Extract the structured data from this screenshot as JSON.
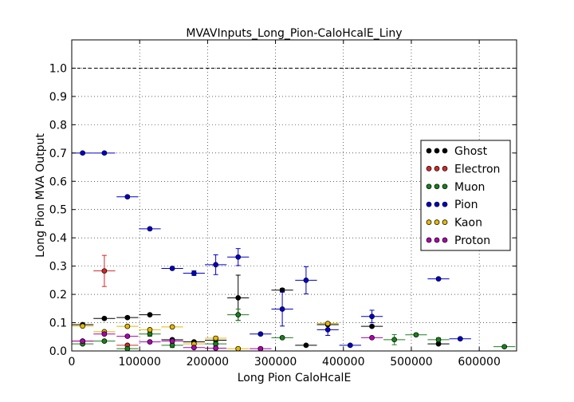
{
  "chart_data": {
    "type": "scatter",
    "title": "MVAVInputs_Long_Pion-CaloHcalE_Liny",
    "xlabel": "Long Pion CaloHcalE",
    "ylabel": "Long Pion MVA Output",
    "xlim": [
      0,
      655000
    ],
    "ylim": [
      0,
      1.1
    ],
    "xticks": [
      0,
      100000,
      200000,
      300000,
      400000,
      500000,
      600000
    ],
    "xtick_labels": [
      "0",
      "100000",
      "200000",
      "300000",
      "400000",
      "500000",
      "600000"
    ],
    "yticks": [
      0.0,
      0.1,
      0.2,
      0.3,
      0.4,
      0.5,
      0.6,
      0.7,
      0.8,
      0.9,
      1.0
    ],
    "ytick_labels": [
      "0.0",
      "0.1",
      "0.2",
      "0.3",
      "0.4",
      "0.5",
      "0.6",
      "0.7",
      "0.8",
      "0.9",
      "1.0"
    ],
    "grid": true,
    "reference_line": 1.0,
    "legend_position": "right",
    "series": [
      {
        "name": "Ghost",
        "color": "#000000",
        "points": [
          {
            "x": 16000,
            "y": 0.093,
            "xerr": 16000,
            "yerr": 0.005
          },
          {
            "x": 48000,
            "y": 0.115,
            "xerr": 16000,
            "yerr": 0.004
          },
          {
            "x": 82000,
            "y": 0.118,
            "xerr": 16000,
            "yerr": 0.004
          },
          {
            "x": 115000,
            "y": 0.128,
            "xerr": 16000,
            "yerr": 0.004
          },
          {
            "x": 148000,
            "y": 0.04,
            "xerr": 16000,
            "yerr": 0.004
          },
          {
            "x": 180000,
            "y": 0.032,
            "xerr": 16000,
            "yerr": 0.004
          },
          {
            "x": 212000,
            "y": 0.038,
            "xerr": 16000,
            "yerr": 0.006
          },
          {
            "x": 245000,
            "y": 0.188,
            "xerr": 16000,
            "yerr": 0.08
          },
          {
            "x": 310000,
            "y": 0.215,
            "xerr": 16000,
            "yerr": 0.006
          },
          {
            "x": 345000,
            "y": 0.02,
            "xerr": 16000,
            "yerr": 0.004
          },
          {
            "x": 377000,
            "y": 0.093,
            "xerr": 16000,
            "yerr": 0.004
          },
          {
            "x": 442000,
            "y": 0.087,
            "xerr": 16000,
            "yerr": 0.004
          },
          {
            "x": 540000,
            "y": 0.025,
            "xerr": 16000,
            "yerr": 0.004
          }
        ]
      },
      {
        "name": "Electron",
        "color": "#d62728",
        "points": [
          {
            "x": 16000,
            "y": 0.035,
            "xerr": 16000,
            "yerr": 0.004
          },
          {
            "x": 48000,
            "y": 0.283,
            "xerr": 16000,
            "yerr": 0.055
          },
          {
            "x": 82000,
            "y": 0.02,
            "xerr": 16000,
            "yerr": 0.004
          }
        ]
      },
      {
        "name": "Muon",
        "color": "#1b7f1b",
        "points": [
          {
            "x": 16000,
            "y": 0.025,
            "xerr": 16000,
            "yerr": 0.004
          },
          {
            "x": 48000,
            "y": 0.035,
            "xerr": 16000,
            "yerr": 0.004
          },
          {
            "x": 82000,
            "y": 0.008,
            "xerr": 16000,
            "yerr": 0.008
          },
          {
            "x": 115000,
            "y": 0.06,
            "xerr": 16000,
            "yerr": 0.008
          },
          {
            "x": 148000,
            "y": 0.02,
            "xerr": 16000,
            "yerr": 0.008
          },
          {
            "x": 212000,
            "y": 0.025,
            "xerr": 16000,
            "yerr": 0.008
          },
          {
            "x": 245000,
            "y": 0.128,
            "xerr": 16000,
            "yerr": 0.02
          },
          {
            "x": 310000,
            "y": 0.047,
            "xerr": 16000,
            "yerr": 0.004
          },
          {
            "x": 475000,
            "y": 0.04,
            "xerr": 16000,
            "yerr": 0.018
          },
          {
            "x": 507000,
            "y": 0.057,
            "xerr": 16000,
            "yerr": 0.004
          },
          {
            "x": 540000,
            "y": 0.04,
            "xerr": 16000,
            "yerr": 0.006
          },
          {
            "x": 637000,
            "y": 0.015,
            "xerr": 16000,
            "yerr": 0.004
          }
        ]
      },
      {
        "name": "Pion",
        "color": "#0000cc",
        "points": [
          {
            "x": 16000,
            "y": 0.7,
            "xerr": 16000,
            "yerr": 0.004
          },
          {
            "x": 48000,
            "y": 0.7,
            "xerr": 16000,
            "yerr": 0.004
          },
          {
            "x": 82000,
            "y": 0.545,
            "xerr": 16000,
            "yerr": 0.004
          },
          {
            "x": 115000,
            "y": 0.432,
            "xerr": 16000,
            "yerr": 0.004
          },
          {
            "x": 148000,
            "y": 0.292,
            "xerr": 16000,
            "yerr": 0.004
          },
          {
            "x": 180000,
            "y": 0.275,
            "xerr": 16000,
            "yerr": 0.008
          },
          {
            "x": 212000,
            "y": 0.305,
            "xerr": 16000,
            "yerr": 0.035
          },
          {
            "x": 245000,
            "y": 0.332,
            "xerr": 16000,
            "yerr": 0.03
          },
          {
            "x": 278000,
            "y": 0.06,
            "xerr": 16000,
            "yerr": 0.004
          },
          {
            "x": 310000,
            "y": 0.148,
            "xerr": 16000,
            "yerr": 0.06
          },
          {
            "x": 345000,
            "y": 0.25,
            "xerr": 16000,
            "yerr": 0.048
          },
          {
            "x": 377000,
            "y": 0.075,
            "xerr": 16000,
            "yerr": 0.02
          },
          {
            "x": 410000,
            "y": 0.02,
            "xerr": 16000,
            "yerr": 0.004
          },
          {
            "x": 442000,
            "y": 0.122,
            "xerr": 16000,
            "yerr": 0.022
          },
          {
            "x": 540000,
            "y": 0.255,
            "xerr": 16000,
            "yerr": 0.004
          },
          {
            "x": 572000,
            "y": 0.043,
            "xerr": 16000,
            "yerr": 0.004
          }
        ]
      },
      {
        "name": "Kaon",
        "color": "#e6b800",
        "points": [
          {
            "x": 16000,
            "y": 0.088,
            "xerr": 16000,
            "yerr": 0.004
          },
          {
            "x": 48000,
            "y": 0.068,
            "xerr": 16000,
            "yerr": 0.004
          },
          {
            "x": 82000,
            "y": 0.087,
            "xerr": 16000,
            "yerr": 0.004
          },
          {
            "x": 115000,
            "y": 0.075,
            "xerr": 16000,
            "yerr": 0.004
          },
          {
            "x": 148000,
            "y": 0.085,
            "xerr": 16000,
            "yerr": 0.004
          },
          {
            "x": 180000,
            "y": 0.025,
            "xerr": 16000,
            "yerr": 0.004
          },
          {
            "x": 212000,
            "y": 0.045,
            "xerr": 16000,
            "yerr": 0.006
          },
          {
            "x": 245000,
            "y": 0.008,
            "xerr": 16000,
            "yerr": 0.004
          },
          {
            "x": 377000,
            "y": 0.097,
            "xerr": 16000,
            "yerr": 0.004
          }
        ]
      },
      {
        "name": "Proton",
        "color": "#b000b0",
        "points": [
          {
            "x": 16000,
            "y": 0.035,
            "xerr": 16000,
            "yerr": 0.004
          },
          {
            "x": 48000,
            "y": 0.06,
            "xerr": 16000,
            "yerr": 0.004
          },
          {
            "x": 82000,
            "y": 0.052,
            "xerr": 16000,
            "yerr": 0.004
          },
          {
            "x": 115000,
            "y": 0.032,
            "xerr": 16000,
            "yerr": 0.004
          },
          {
            "x": 148000,
            "y": 0.035,
            "xerr": 16000,
            "yerr": 0.004
          },
          {
            "x": 180000,
            "y": 0.012,
            "xerr": 16000,
            "yerr": 0.004
          },
          {
            "x": 212000,
            "y": 0.01,
            "xerr": 16000,
            "yerr": 0.004
          },
          {
            "x": 278000,
            "y": 0.008,
            "xerr": 16000,
            "yerr": 0.004
          },
          {
            "x": 442000,
            "y": 0.047,
            "xerr": 16000,
            "yerr": 0.004
          }
        ]
      }
    ]
  }
}
